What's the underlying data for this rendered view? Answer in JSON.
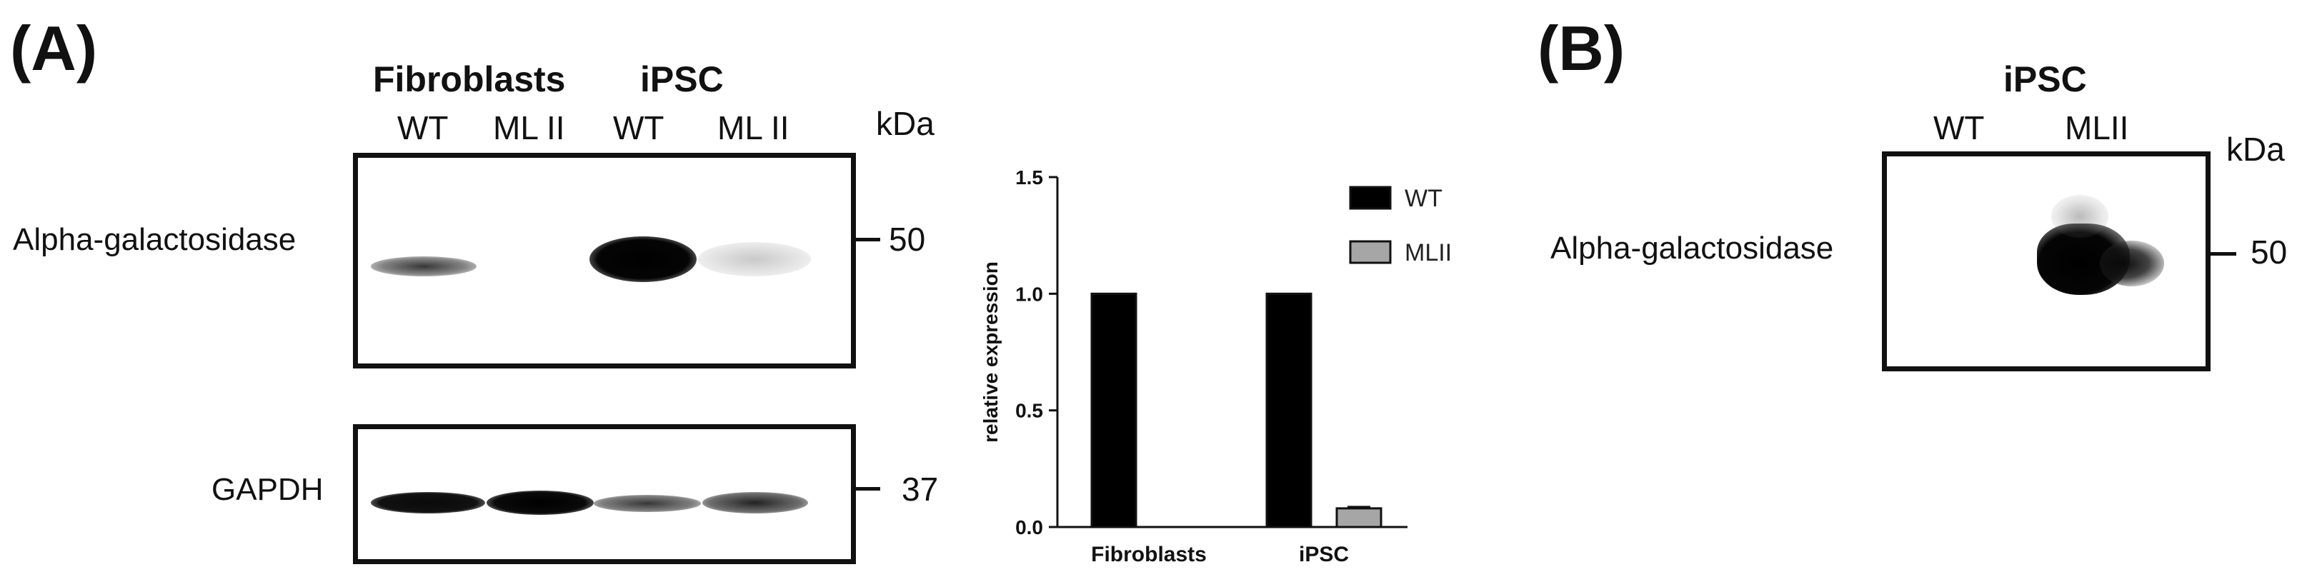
{
  "panel_a": {
    "label": "(A)",
    "group_headers": [
      "Fibroblasts",
      "iPSC"
    ],
    "lanes": [
      "WT",
      "ML II",
      "WT",
      "ML II"
    ],
    "kda_label": "kDa",
    "blots": [
      {
        "label": "Alpha-galactosidase",
        "marker": "50"
      },
      {
        "label": "GAPDH",
        "marker": "37"
      }
    ]
  },
  "chart_data": {
    "type": "bar",
    "categories": [
      "Fibroblasts",
      "iPSC"
    ],
    "series": [
      {
        "name": "WT",
        "values": [
          1.0,
          1.0
        ],
        "color": "#000000"
      },
      {
        "name": "MLII",
        "values": [
          0.0,
          0.08
        ],
        "errors": [
          0,
          0.006
        ],
        "color": "#a6a6a6"
      }
    ],
    "ylabel": "relative expression",
    "xlabel": "",
    "ylim": [
      0,
      1.5
    ],
    "yticks": [
      "0.0",
      "0.5",
      "1.0",
      "1.5"
    ],
    "legend": "top-right"
  },
  "panel_b": {
    "label": "(B)",
    "group_header": "iPSC",
    "lanes": [
      "WT",
      "MLII"
    ],
    "kda_label": "kDa",
    "blot": {
      "label": "Alpha-galactosidase",
      "marker": "50"
    }
  }
}
